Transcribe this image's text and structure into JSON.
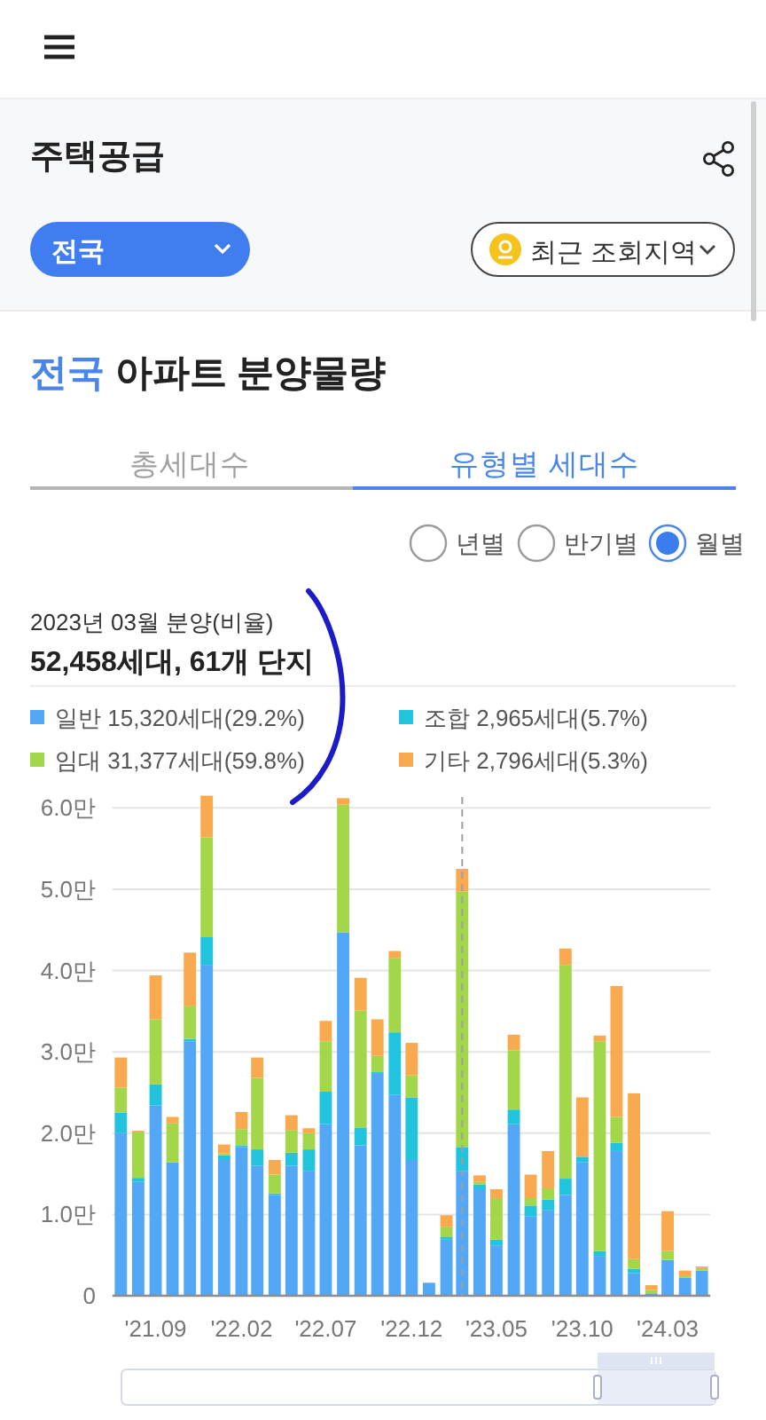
{
  "chart_data": {
    "type": "bar",
    "title": "전국 아파트 분양물량",
    "annotations": [
      "주택공급",
      "전국",
      "최근 조회지역",
      "총세대수",
      "유형별 세대수",
      "년별",
      "반기별",
      "월별",
      "2023년 03월 분양(비율)",
      "52,458세대, 61개 단지"
    ],
    "x": [
      "2021-07",
      "2021-08",
      "2021-09",
      "2021-10",
      "2021-11",
      "2021-12",
      "2022-01",
      "2022-02",
      "2022-03",
      "2022-04",
      "2022-05",
      "2022-06",
      "2022-07",
      "2022-08",
      "2022-09",
      "2022-10",
      "2022-11",
      "2022-12",
      "2023-01",
      "2023-02",
      "2023-03",
      "2023-04",
      "2023-05",
      "2023-06",
      "2023-07",
      "2023-08",
      "2023-09",
      "2023-10",
      "2023-11",
      "2023-12",
      "2024-01",
      "2024-02",
      "2024-03",
      "2024-04",
      "2024-05"
    ],
    "series": [
      {
        "name": "일반 15,320세대(29.2%)",
        "color": "#52a8f7",
        "values": [
          2.0,
          1.4,
          2.34,
          1.64,
          3.13,
          4.07,
          1.67,
          1.83,
          1.6,
          1.24,
          1.6,
          1.53,
          2.11,
          4.47,
          1.85,
          2.73,
          2.47,
          1.67,
          0.16,
          0.69,
          1.53,
          1.31,
          0.62,
          2.11,
          0.98,
          1.05,
          1.24,
          1.64,
          0.49,
          1.78,
          0.28,
          0.03,
          0.44,
          0.22,
          0.31
        ]
      },
      {
        "name": "조합 2,965세대(5.7%)",
        "color": "#22c3dc",
        "values": [
          0.25,
          0.05,
          0.26,
          0,
          0.03,
          0.34,
          0.06,
          0.02,
          0.2,
          0.02,
          0.16,
          0.27,
          0.4,
          0,
          0.22,
          0.02,
          0.77,
          0.77,
          0,
          0.03,
          0.3,
          0.06,
          0.07,
          0.18,
          0.13,
          0.13,
          0.2,
          0.07,
          0.06,
          0.1,
          0.05,
          0,
          0,
          0,
          0
        ]
      },
      {
        "name": "임대 31,377세대(59.8%)",
        "color": "#a3d74a",
        "values": [
          0.31,
          0.57,
          0.8,
          0.48,
          0.4,
          1.23,
          0.02,
          0.2,
          0.88,
          0.23,
          0.28,
          0.2,
          0.62,
          1.57,
          1.44,
          0.2,
          0.91,
          0.27,
          0,
          0.13,
          3.14,
          0.03,
          0.51,
          0.73,
          0.09,
          0.13,
          2.63,
          0,
          2.58,
          0.32,
          0.12,
          0.04,
          0.11,
          0.02,
          0.03
        ]
      },
      {
        "name": "기타 2,796세대(5.3%)",
        "color": "#f9a94e",
        "values": [
          0.37,
          0.01,
          0.54,
          0.08,
          0.66,
          0.51,
          0.11,
          0.21,
          0.25,
          0.18,
          0.18,
          0.06,
          0.25,
          0.08,
          0.4,
          0.45,
          0.09,
          0.4,
          0,
          0.14,
          0.28,
          0.08,
          0.11,
          0.19,
          0.29,
          0.47,
          0.2,
          0.73,
          0.07,
          1.61,
          2.04,
          0.06,
          0.49,
          0.07,
          0.02
        ]
      }
    ],
    "stacked": true,
    "legend": "top",
    "grid": "y",
    "xlim": [
      "2021-06-16",
      "2024-05-16"
    ],
    "xticks": [
      {
        "value": "2021-09",
        "label": "'21.09"
      },
      {
        "value": "2022-02",
        "label": "'22.02"
      },
      {
        "value": "2022-07",
        "label": "'22.07"
      },
      {
        "value": "2022-12",
        "label": "'22.12"
      },
      {
        "value": "2023-05",
        "label": "'23.05"
      },
      {
        "value": "2023-10",
        "label": "'23.10"
      },
      {
        "value": "2024-03",
        "label": "'24.03"
      }
    ],
    "ylim": [
      0,
      6.2
    ],
    "yticks": [
      0,
      {
        "value": 1,
        "label": "1.0만"
      },
      {
        "value": 2,
        "label": "2.0만"
      },
      {
        "value": 3,
        "label": "3.0만"
      },
      {
        "value": 4,
        "label": "4.0만"
      },
      {
        "value": 5,
        "label": "5.0만"
      },
      {
        "value": 6,
        "label": "6.0만"
      }
    ],
    "ref_lines": [
      {
        "axis": "x",
        "value": "2023-03",
        "color": "#a0a0a0",
        "line_style": "dashed"
      }
    ]
  }
}
